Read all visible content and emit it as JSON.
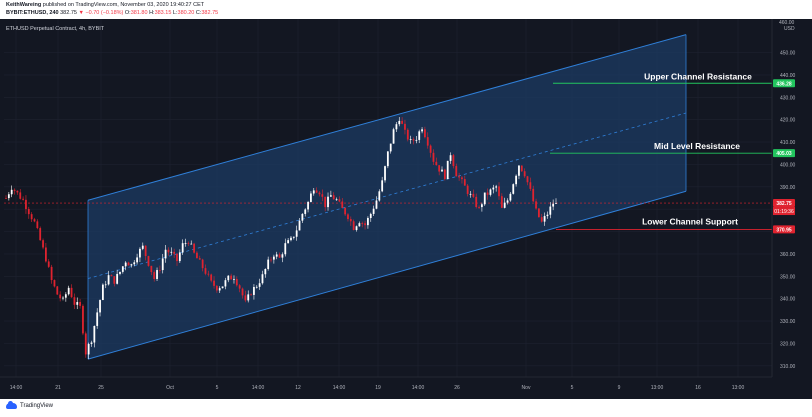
{
  "header": {
    "author": "KeithWareing",
    "published_text": "published on TradingView.com, November 03, 2020 19:40:27 CET",
    "symbol": "BYBIT:ETHUSD, 240",
    "last": "382.75",
    "change": "▼ −0.70 (−0.18%)",
    "o_label": "O:",
    "o_value": "381.80",
    "h_label": "H:",
    "h_value": "383.15",
    "l_label": "L:",
    "l_value": "380.20",
    "c_label": "C:",
    "c_value": "382.75"
  },
  "chart": {
    "symbol_label": "ETHUSD Perpetual Contract, 4h, BYBIT",
    "currency": "USD",
    "price_axis_top": "460.00",
    "y_ticks": [
      "450.00",
      "440.00",
      "430.00",
      "420.00",
      "410.00",
      "400.00",
      "390.00",
      "380.00",
      "370.00",
      "360.00",
      "350.00",
      "340.00",
      "330.00",
      "320.00",
      "310.00"
    ],
    "x_ticks": [
      "14:00",
      "21",
      "25",
      "Oct",
      "5",
      "14:00",
      "12",
      "14:00",
      "19",
      "14:00",
      "26",
      "Nov",
      "5",
      "9",
      "13:00",
      "16",
      "13:00"
    ],
    "price_badges": {
      "upper": "436.28",
      "mid": "405.03",
      "last": "382.75",
      "countdown": "01:19:36",
      "lower": "370.95"
    },
    "annotations": {
      "upper": "Upper Channel Resistance",
      "mid": "Mid Level Resistance",
      "lower": "Lower Channel Support"
    },
    "colors": {
      "background": "#131722",
      "channel_fill": "#1c3b63",
      "channel_line": "#2f7fd8",
      "up_candle": "#ffffff",
      "down_candle": "#e0232f",
      "resistance_line": "#22c55e",
      "support_line": "#e0232f"
    }
  },
  "chart_data": {
    "type": "candlestick",
    "ylim": [
      305,
      465
    ],
    "channel": {
      "upper_start": 384,
      "upper_end": 458,
      "mid_start": 349,
      "mid_end": 423,
      "lower_start": 313,
      "lower_end": 388
    },
    "levels": {
      "upper_resistance": 436.28,
      "mid_resistance": 405.03,
      "lower_support": 370.95,
      "last": 382.75
    },
    "close_path": [
      385,
      390,
      387,
      384,
      379,
      374,
      366,
      358,
      348,
      342,
      339,
      345,
      338,
      336,
      316,
      322,
      334,
      345,
      350,
      348,
      352,
      357,
      355,
      360,
      363,
      356,
      349,
      354,
      362,
      360,
      357,
      364,
      366,
      360,
      356,
      352,
      347,
      345,
      346,
      349,
      350,
      345,
      338,
      343,
      346,
      350,
      356,
      360,
      358,
      364,
      366,
      371,
      378,
      383,
      390,
      388,
      382,
      386,
      384,
      380,
      377,
      372,
      375,
      373,
      378,
      384,
      392,
      405,
      415,
      421,
      414,
      410,
      412,
      417,
      410,
      402,
      398,
      395,
      405,
      396,
      392,
      388,
      384,
      380,
      386,
      388,
      390,
      380,
      384,
      392,
      400,
      396,
      388,
      379,
      374,
      378,
      382.75
    ]
  },
  "footer": {
    "brand": "TradingView"
  }
}
